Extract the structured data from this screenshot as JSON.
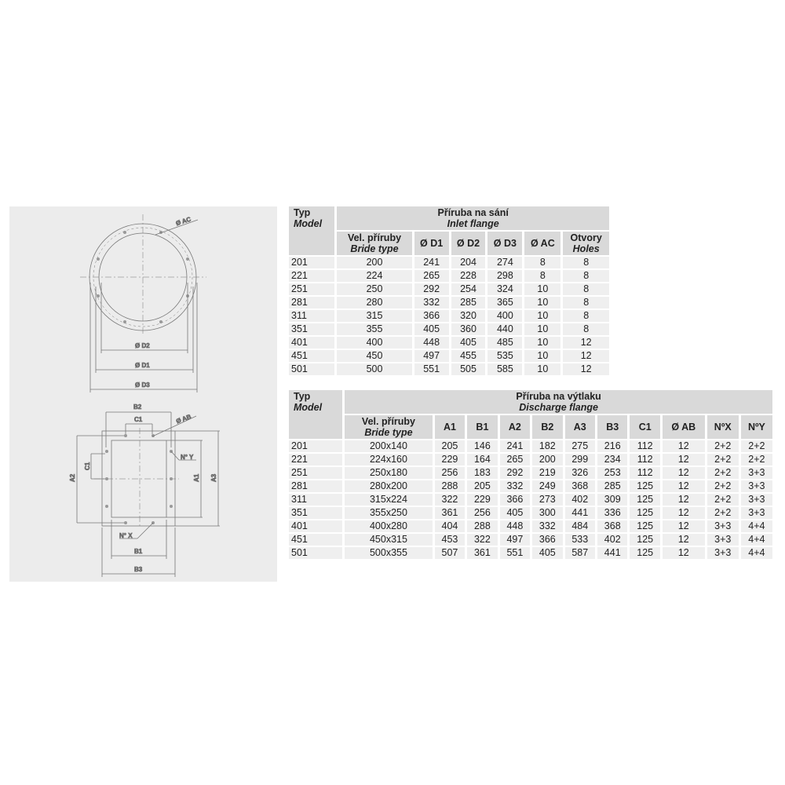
{
  "drawing": {
    "labels": {
      "ac": "Ø AC",
      "d1": "Ø D1",
      "d2": "Ø D2",
      "d3": "Ø D3",
      "ab": "Ø AB",
      "a1": "A1",
      "a2": "A2",
      "a3": "A3",
      "b1": "B1",
      "b2": "B2",
      "b3": "B3",
      "c1_top": "C1",
      "c1_side": "C1",
      "nx": "N° X",
      "ny": "N° Y"
    }
  },
  "inlet": {
    "typ": "Typ",
    "model": "Model",
    "group_cs": "Příruba na sání",
    "group_en": "Inlet flange",
    "columns": [
      {
        "cs": "Vel. příruby",
        "en": "Bride type"
      },
      {
        "cs": "Ø D1"
      },
      {
        "cs": "Ø D2"
      },
      {
        "cs": "Ø D3"
      },
      {
        "cs": "Ø AC"
      },
      {
        "cs": "Otvory",
        "en": "Holes"
      }
    ],
    "rows": [
      [
        "201",
        "200",
        "241",
        "204",
        "274",
        "8",
        "8"
      ],
      [
        "221",
        "224",
        "265",
        "228",
        "298",
        "8",
        "8"
      ],
      [
        "251",
        "250",
        "292",
        "254",
        "324",
        "10",
        "8"
      ],
      [
        "281",
        "280",
        "332",
        "285",
        "365",
        "10",
        "8"
      ],
      [
        "311",
        "315",
        "366",
        "320",
        "400",
        "10",
        "8"
      ],
      [
        "351",
        "355",
        "405",
        "360",
        "440",
        "10",
        "8"
      ],
      [
        "401",
        "400",
        "448",
        "405",
        "485",
        "10",
        "12"
      ],
      [
        "451",
        "450",
        "497",
        "455",
        "535",
        "10",
        "12"
      ],
      [
        "501",
        "500",
        "551",
        "505",
        "585",
        "10",
        "12"
      ]
    ]
  },
  "discharge": {
    "typ": "Typ",
    "model": "Model",
    "group_cs": "Příruba na výtlaku",
    "group_en": "Discharge flange",
    "columns": [
      {
        "cs": "Vel. příruby",
        "en": "Bride type"
      },
      {
        "cs": "A1"
      },
      {
        "cs": "B1"
      },
      {
        "cs": "A2"
      },
      {
        "cs": "B2"
      },
      {
        "cs": "A3"
      },
      {
        "cs": "B3"
      },
      {
        "cs": "C1"
      },
      {
        "cs": "Ø AB"
      },
      {
        "cs": "NºX"
      },
      {
        "cs": "NºY"
      }
    ],
    "rows": [
      [
        "201",
        "200x140",
        "205",
        "146",
        "241",
        "182",
        "275",
        "216",
        "112",
        "12",
        "2+2",
        "2+2"
      ],
      [
        "221",
        "224x160",
        "229",
        "164",
        "265",
        "200",
        "299",
        "234",
        "112",
        "12",
        "2+2",
        "2+2"
      ],
      [
        "251",
        "250x180",
        "256",
        "183",
        "292",
        "219",
        "326",
        "253",
        "112",
        "12",
        "2+2",
        "3+3"
      ],
      [
        "281",
        "280x200",
        "288",
        "205",
        "332",
        "249",
        "368",
        "285",
        "125",
        "12",
        "2+2",
        "3+3"
      ],
      [
        "311",
        "315x224",
        "322",
        "229",
        "366",
        "273",
        "402",
        "309",
        "125",
        "12",
        "2+2",
        "3+3"
      ],
      [
        "351",
        "355x250",
        "361",
        "256",
        "405",
        "300",
        "441",
        "336",
        "125",
        "12",
        "2+2",
        "3+3"
      ],
      [
        "401",
        "400x280",
        "404",
        "288",
        "448",
        "332",
        "484",
        "368",
        "125",
        "12",
        "3+3",
        "4+4"
      ],
      [
        "451",
        "450x315",
        "453",
        "322",
        "497",
        "366",
        "533",
        "402",
        "125",
        "12",
        "3+3",
        "4+4"
      ],
      [
        "501",
        "500x355",
        "507",
        "361",
        "551",
        "405",
        "587",
        "441",
        "125",
        "12",
        "3+3",
        "4+4"
      ]
    ]
  }
}
